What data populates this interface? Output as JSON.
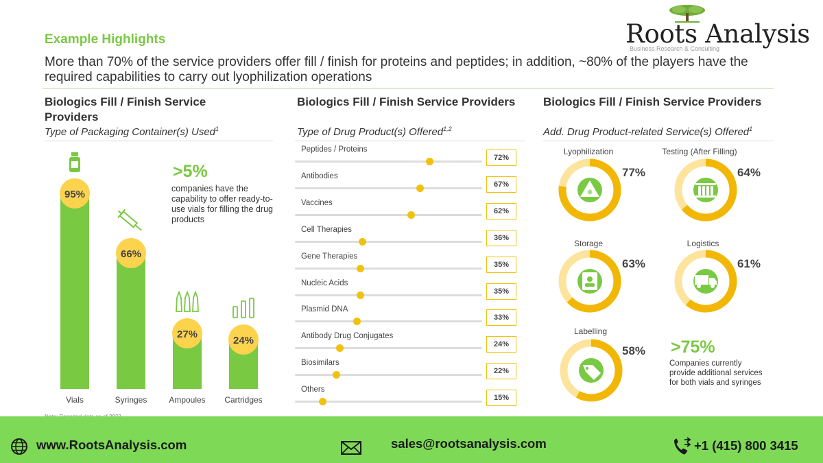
{
  "header": {
    "logo_text": "Roots Analysis",
    "logo_tagline": "Business Research & Consulting",
    "page_title": "Example Highlights",
    "headline": "More than 70% of the service providers offer fill / finish for proteins and peptides; in addition, ~80% of the players have the required capabilities to carry out lyophilization operations"
  },
  "panel1": {
    "title": "Biologics Fill / Finish Service Providers",
    "subtitle": "Type of Packaging Container(s) Used",
    "subtitle_note": "1",
    "callout_value": ">5%",
    "callout_text": "companies have the capability to offer ready-to-use vials for filling the drug products",
    "footnote": "Note: Reported data as of 2023"
  },
  "panel2": {
    "title": "Biologics Fill / Finish Service Providers",
    "subtitle": "Type of Drug Product(s) Offered",
    "subtitle_note": "1,2"
  },
  "panel3": {
    "title": "Biologics Fill / Finish Service Providers",
    "subtitle": "Add. Drug Product-related Service(s) Offered",
    "subtitle_note": "1",
    "callout_value": ">75%",
    "callout_text": "Companies currently provide additional services for both vials and syringes"
  },
  "chart_data": [
    {
      "type": "bar",
      "categories": [
        "Vials",
        "Syringes",
        "Ampoules",
        "Cartridges"
      ],
      "values": [
        95,
        66,
        27,
        24
      ],
      "labels": [
        "95%",
        "66%",
        "27%",
        "24%"
      ],
      "icons": [
        "vial-icon",
        "syringe-icon",
        "ampoule-icon",
        "cartridge-icon"
      ],
      "ylim": [
        0,
        100
      ],
      "grid": false,
      "colors": {
        "bar": "#7ac943",
        "label_circle": "#fcd34d"
      }
    },
    {
      "type": "bar",
      "orientation": "horizontal",
      "categories": [
        "Peptides / Proteins",
        "Antibodies",
        "Vaccines",
        "Cell Therapies",
        "Gene Therapies",
        "Nucleic Acids",
        "Plasmid DNA",
        "Antibody Drug Conjugates",
        "Biosimilars",
        "Others"
      ],
      "values": [
        72,
        67,
        62,
        36,
        35,
        35,
        33,
        24,
        22,
        15
      ],
      "labels": [
        "72%",
        "67%",
        "62%",
        "36%",
        "35%",
        "35%",
        "33%",
        "24%",
        "22%",
        "15%"
      ],
      "xlim": [
        0,
        100
      ],
      "colors": {
        "knob": "#f2c10b",
        "track": "#dcdcdc"
      }
    },
    {
      "type": "pie",
      "style": "donut",
      "categories": [
        "Lyophilization",
        "Testing (After Filling)",
        "Storage",
        "Logistics",
        "Labelling"
      ],
      "values": [
        77,
        64,
        63,
        61,
        58
      ],
      "labels": [
        "77%",
        "64%",
        "63%",
        "61%",
        "58%"
      ],
      "icons": [
        "snowflake-icon",
        "test-tubes-icon",
        "storage-icon",
        "truck-icon",
        "tag-icon"
      ],
      "colors": {
        "filled": "#f2b705",
        "remaining": "#fde49c",
        "icon_bg": "#7ac943"
      }
    }
  ],
  "footer": {
    "website": "www.RootsAnalysis.com",
    "email": "sales@rootsanalysis.com",
    "phone": "+1 (415) 800 3415"
  }
}
